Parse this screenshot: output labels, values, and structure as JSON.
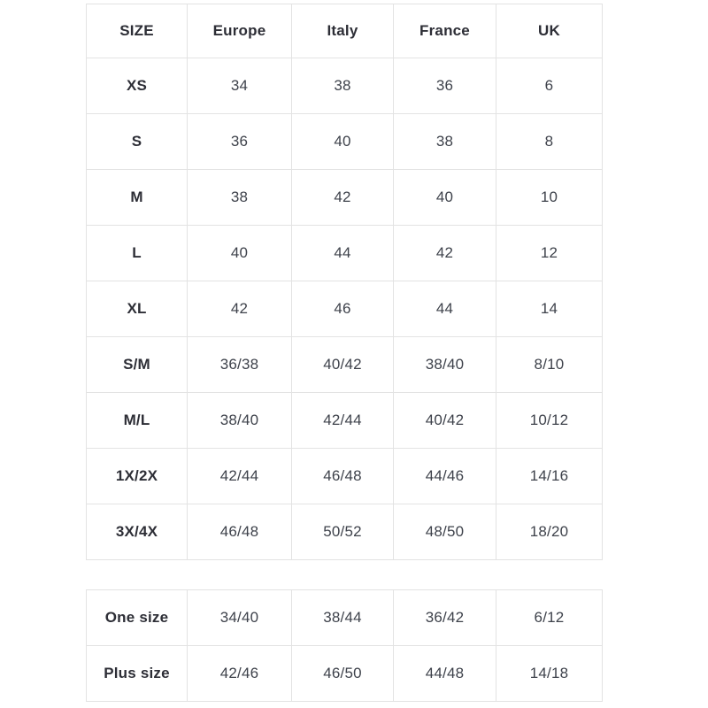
{
  "colors": {
    "border": "#e3e3e3",
    "header_text": "#2d2e36",
    "value_text": "#3e424b",
    "background": "#ffffff"
  },
  "main_table": {
    "headers": [
      "SIZE",
      "Europe",
      "Italy",
      "France",
      "UK"
    ],
    "rows": [
      {
        "label": "XS",
        "values": [
          "34",
          "38",
          "36",
          "6"
        ]
      },
      {
        "label": "S",
        "values": [
          "36",
          "40",
          "38",
          "8"
        ]
      },
      {
        "label": "M",
        "values": [
          "38",
          "42",
          "40",
          "10"
        ]
      },
      {
        "label": "L",
        "values": [
          "40",
          "44",
          "42",
          "12"
        ]
      },
      {
        "label": "XL",
        "values": [
          "42",
          "46",
          "44",
          "14"
        ]
      },
      {
        "label": "S/M",
        "values": [
          "36/38",
          "40/42",
          "38/40",
          "8/10"
        ]
      },
      {
        "label": "M/L",
        "values": [
          "38/40",
          "42/44",
          "40/42",
          "10/12"
        ]
      },
      {
        "label": "1X/2X",
        "values": [
          "42/44",
          "46/48",
          "44/46",
          "14/16"
        ]
      },
      {
        "label": "3X/4X",
        "values": [
          "46/48",
          "50/52",
          "48/50",
          "18/20"
        ]
      }
    ]
  },
  "special_table": {
    "rows": [
      {
        "label": "One size",
        "values": [
          "34/40",
          "38/44",
          "36/42",
          "6/12"
        ]
      },
      {
        "label": "Plus size",
        "values": [
          "42/46",
          "46/50",
          "44/48",
          "14/18"
        ]
      }
    ]
  }
}
